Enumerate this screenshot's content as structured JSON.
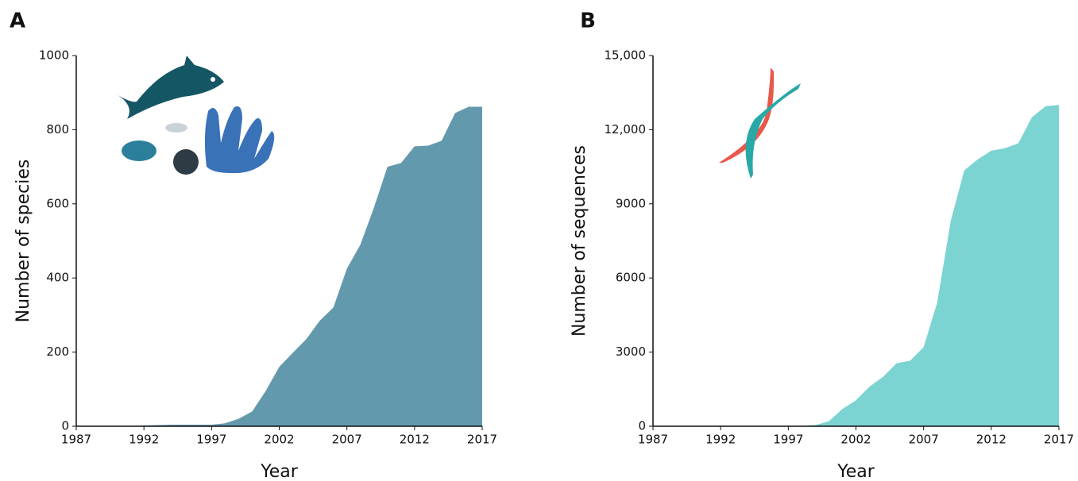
{
  "chart_data": [
    {
      "type": "area",
      "panel": "A",
      "x_label": "Year",
      "y_label": "Number of species",
      "color": "#6399ad",
      "x": [
        1987,
        1988,
        1989,
        1990,
        1991,
        1992,
        1993,
        1994,
        1995,
        1996,
        1997,
        1998,
        1999,
        2000,
        2001,
        2002,
        2003,
        2004,
        2005,
        2006,
        2007,
        2008,
        2009,
        2010,
        2011,
        2012,
        2013,
        2014,
        2015,
        2016,
        2017
      ],
      "values": [
        0,
        0,
        0,
        0,
        0,
        2,
        3,
        4,
        4,
        4,
        4,
        8,
        20,
        40,
        95,
        160,
        198,
        235,
        285,
        320,
        425,
        490,
        590,
        700,
        710,
        755,
        757,
        770,
        845,
        862,
        862
      ],
      "xlim": [
        1987,
        2017
      ],
      "xticks": [
        1987,
        1992,
        1997,
        2002,
        2007,
        2012,
        2017
      ],
      "ylim": [
        0,
        1000
      ],
      "yticks": [
        0,
        200,
        400,
        600,
        800,
        1000
      ]
    },
    {
      "type": "area",
      "panel": "B",
      "x_label": "Year",
      "y_label": "Number of sequences",
      "color": "#7bd4d2",
      "x": [
        1987,
        1988,
        1989,
        1990,
        1991,
        1992,
        1993,
        1994,
        1995,
        1996,
        1997,
        1998,
        1999,
        2000,
        2001,
        2002,
        2003,
        2004,
        2005,
        2006,
        2007,
        2008,
        2009,
        2010,
        2011,
        2012,
        2013,
        2014,
        2015,
        2016,
        2017
      ],
      "values": [
        0,
        0,
        0,
        0,
        0,
        0,
        0,
        0,
        0,
        0,
        0,
        0,
        50,
        200,
        700,
        1050,
        1600,
        2000,
        2550,
        2650,
        3200,
        5000,
        8300,
        10350,
        10800,
        11150,
        11250,
        11450,
        12500,
        12950,
        13000
      ],
      "xlim": [
        1987,
        2017
      ],
      "xticks": [
        1987,
        1992,
        1997,
        2002,
        2007,
        2012,
        2017
      ],
      "ylim": [
        0,
        15000
      ],
      "yticks": [
        0,
        3000,
        6000,
        9000,
        {
          "value": 12000,
          "label": "12,000"
        },
        {
          "value": 15000,
          "label": "15,000"
        }
      ]
    }
  ]
}
